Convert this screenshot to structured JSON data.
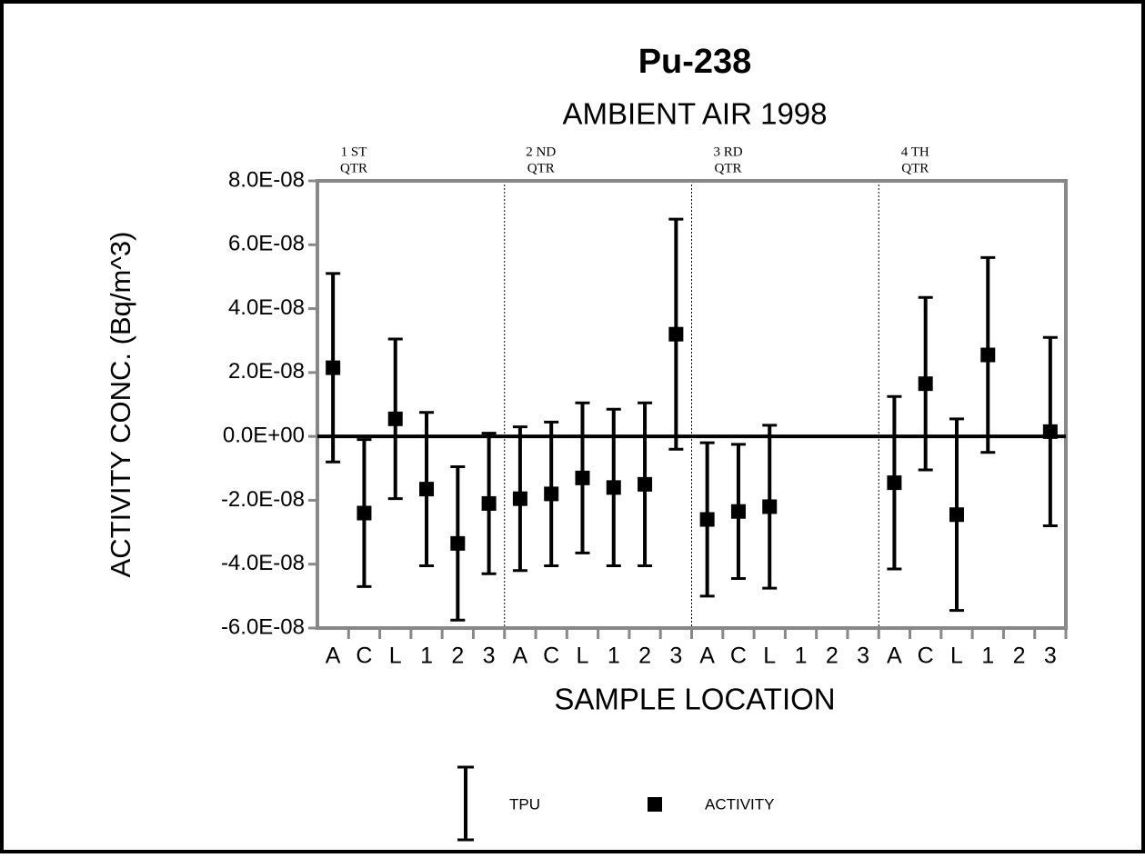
{
  "chart_data": {
    "type": "errorbar",
    "title": "Pu-238",
    "subtitle": "AMBIENT AIR 1998",
    "y_label": "ACTIVITY CONC. (Bq/m^3)",
    "x_label": "SAMPLE LOCATION",
    "categories": [
      "A",
      "C",
      "L",
      "1",
      "2",
      "3",
      "A",
      "C",
      "L",
      "1",
      "2",
      "3",
      "A",
      "C",
      "L",
      "1",
      "2",
      "3",
      "A",
      "C",
      "L",
      "1",
      "2",
      "3"
    ],
    "groups": [
      [
        "1 ST",
        "QTR"
      ],
      [
        "2 ND",
        "QTR"
      ],
      [
        "3 RD",
        "QTR"
      ],
      [
        "4 TH",
        "QTR"
      ]
    ],
    "error_name": "TPU",
    "series": [
      {
        "name": "ACTIVITY",
        "color": "#000000",
        "values": [
          2.15e-08,
          -2.4e-08,
          5.5e-09,
          -1.65e-08,
          -3.35e-08,
          -2.1e-08,
          -1.95e-08,
          -1.8e-08,
          -1.3e-08,
          -1.6e-08,
          -1.5e-08,
          3.2e-08,
          -2.6e-08,
          -2.35e-08,
          -2.2e-08,
          null,
          null,
          null,
          -1.45e-08,
          1.65e-08,
          -2.45e-08,
          2.55e-08,
          null,
          1.5e-09
        ],
        "errors": [
          2.95e-08,
          2.3e-08,
          2.5e-08,
          2.4e-08,
          2.4e-08,
          2.2e-08,
          2.25e-08,
          2.25e-08,
          2.35e-08,
          2.45e-08,
          2.55e-08,
          3.6e-08,
          2.4e-08,
          2.1e-08,
          2.55e-08,
          null,
          null,
          null,
          2.7e-08,
          2.7e-08,
          3e-08,
          3.05e-08,
          null,
          2.95e-08
        ]
      }
    ],
    "ylim": [
      -6e-08,
      8e-08
    ],
    "yticks": [
      {
        "value": -6e-08,
        "label": "-6.0E-08"
      },
      {
        "value": -4e-08,
        "label": "-4.0E-08"
      },
      {
        "value": -2e-08,
        "label": "-2.0E-08"
      },
      {
        "value": 0,
        "label": "0.0E+00"
      },
      {
        "value": 2e-08,
        "label": "2.0E-08"
      },
      {
        "value": 4e-08,
        "label": "4.0E-08"
      },
      {
        "value": 6e-08,
        "label": "6.0E-08"
      },
      {
        "value": 8e-08,
        "label": "8.0E-08"
      }
    ],
    "legend": "bottom"
  }
}
